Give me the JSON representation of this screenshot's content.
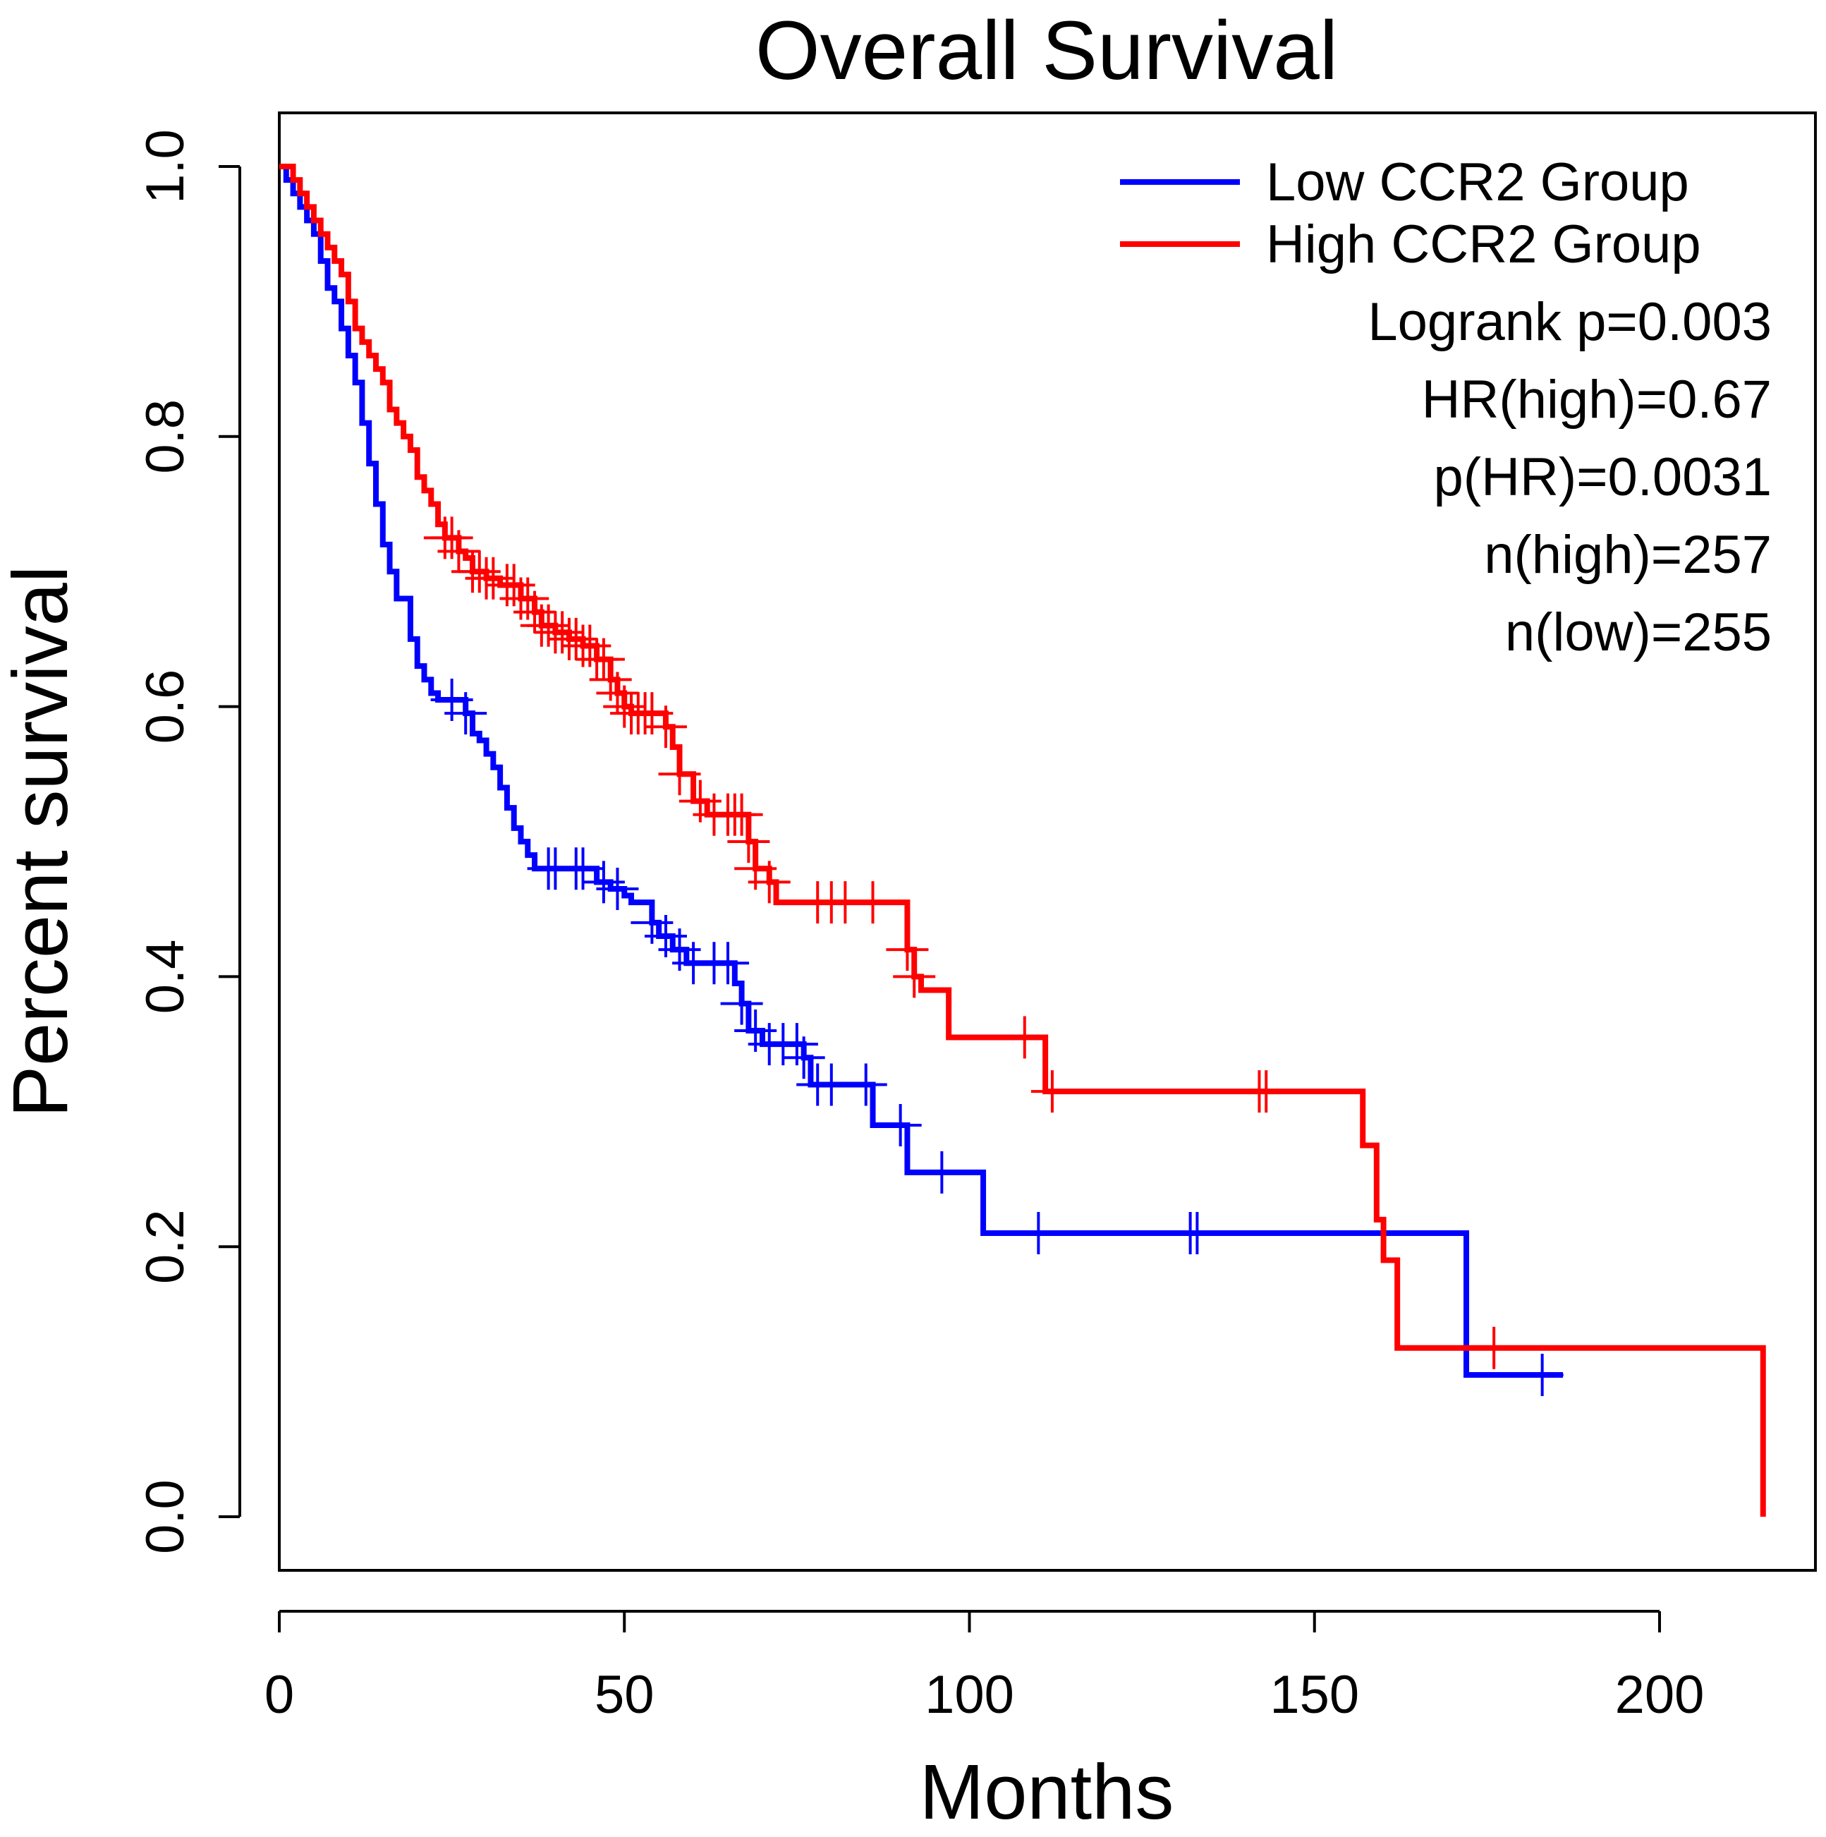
{
  "chart_data": {
    "type": "line",
    "subtype": "kaplan-meier",
    "title": "Overall Survival",
    "xlabel": "Months",
    "ylabel": "Percent survival",
    "xlim": [
      0,
      220
    ],
    "ylim": [
      0,
      1
    ],
    "xticks": [
      "0",
      "50",
      "100",
      "150",
      "200"
    ],
    "yticks": [
      "0.0",
      "0.2",
      "0.4",
      "0.6",
      "0.8",
      "1.0"
    ],
    "legend_position": "top-right",
    "grid": false,
    "series": [
      {
        "name": "Low CCR2 Group",
        "color": "#0000ff",
        "steps": [
          [
            0,
            1.0
          ],
          [
            1,
            0.99
          ],
          [
            2,
            0.98
          ],
          [
            3,
            0.97
          ],
          [
            4,
            0.96
          ],
          [
            5,
            0.95
          ],
          [
            6,
            0.93
          ],
          [
            7,
            0.91
          ],
          [
            8,
            0.9
          ],
          [
            9,
            0.88
          ],
          [
            10,
            0.86
          ],
          [
            11,
            0.84
          ],
          [
            12,
            0.81
          ],
          [
            13,
            0.78
          ],
          [
            14,
            0.75
          ],
          [
            15,
            0.72
          ],
          [
            16,
            0.7
          ],
          [
            17,
            0.68
          ],
          [
            19,
            0.65
          ],
          [
            20,
            0.63
          ],
          [
            21,
            0.62
          ],
          [
            22,
            0.61
          ],
          [
            23,
            0.605
          ],
          [
            27,
            0.595
          ],
          [
            28,
            0.58
          ],
          [
            29,
            0.575
          ],
          [
            30,
            0.565
          ],
          [
            31,
            0.555
          ],
          [
            32,
            0.54
          ],
          [
            33,
            0.525
          ],
          [
            34,
            0.51
          ],
          [
            35,
            0.5
          ],
          [
            36,
            0.49
          ],
          [
            37,
            0.48
          ],
          [
            46,
            0.47
          ],
          [
            48,
            0.465
          ],
          [
            50,
            0.46
          ],
          [
            51,
            0.455
          ],
          [
            54,
            0.44
          ],
          [
            55,
            0.43
          ],
          [
            57,
            0.42
          ],
          [
            59,
            0.41
          ],
          [
            66,
            0.395
          ],
          [
            67,
            0.38
          ],
          [
            68,
            0.36
          ],
          [
            70,
            0.35
          ],
          [
            76,
            0.34
          ],
          [
            77,
            0.32
          ],
          [
            86,
            0.29
          ],
          [
            91,
            0.255
          ],
          [
            102,
            0.21
          ],
          [
            172,
            0.105
          ],
          [
            186,
            0.105
          ]
        ],
        "censor": [
          25,
          27,
          39,
          40,
          43,
          44,
          47,
          49,
          54,
          56,
          58,
          60,
          63,
          65,
          67,
          69,
          71,
          73,
          75,
          76,
          78,
          80,
          85,
          90,
          96,
          110,
          132,
          133,
          183
        ]
      },
      {
        "name": "High CCR2 Group",
        "color": "#ff0000",
        "steps": [
          [
            0,
            1.0
          ],
          [
            2,
            0.99
          ],
          [
            3,
            0.98
          ],
          [
            4,
            0.97
          ],
          [
            5,
            0.96
          ],
          [
            6,
            0.95
          ],
          [
            7,
            0.94
          ],
          [
            8,
            0.93
          ],
          [
            9,
            0.92
          ],
          [
            10,
            0.9
          ],
          [
            11,
            0.88
          ],
          [
            12,
            0.87
          ],
          [
            13,
            0.86
          ],
          [
            14,
            0.85
          ],
          [
            15,
            0.84
          ],
          [
            16,
            0.82
          ],
          [
            17,
            0.81
          ],
          [
            18,
            0.8
          ],
          [
            19,
            0.79
          ],
          [
            20,
            0.77
          ],
          [
            21,
            0.76
          ],
          [
            22,
            0.75
          ],
          [
            23,
            0.735
          ],
          [
            24,
            0.725
          ],
          [
            26,
            0.715
          ],
          [
            27,
            0.71
          ],
          [
            28,
            0.7
          ],
          [
            30,
            0.695
          ],
          [
            32,
            0.69
          ],
          [
            35,
            0.68
          ],
          [
            37,
            0.67
          ],
          [
            38,
            0.66
          ],
          [
            40,
            0.655
          ],
          [
            42,
            0.65
          ],
          [
            44,
            0.645
          ],
          [
            46,
            0.635
          ],
          [
            48,
            0.62
          ],
          [
            49,
            0.61
          ],
          [
            50,
            0.6
          ],
          [
            51,
            0.595
          ],
          [
            56,
            0.585
          ],
          [
            57,
            0.57
          ],
          [
            58,
            0.55
          ],
          [
            60,
            0.53
          ],
          [
            62,
            0.52
          ],
          [
            68,
            0.5
          ],
          [
            69,
            0.48
          ],
          [
            71,
            0.47
          ],
          [
            72,
            0.455
          ],
          [
            91,
            0.42
          ],
          [
            92,
            0.4
          ],
          [
            93,
            0.39
          ],
          [
            97,
            0.355
          ],
          [
            111,
            0.315
          ],
          [
            157,
            0.275
          ],
          [
            159,
            0.22
          ],
          [
            160,
            0.19
          ],
          [
            162,
            0.125
          ],
          [
            215,
            0.125
          ],
          [
            215,
            0.0
          ]
        ],
        "censor": [
          24,
          25,
          26,
          28,
          29,
          30,
          31,
          33,
          34,
          35,
          36,
          37,
          38,
          39,
          40,
          41,
          42,
          43,
          44,
          45,
          46,
          47,
          48,
          49,
          50,
          51,
          52,
          53,
          54,
          56,
          58,
          61,
          63,
          65,
          66,
          67,
          68,
          69,
          71,
          78,
          80,
          82,
          86,
          91,
          92,
          108,
          112,
          142,
          143,
          176
        ]
      }
    ],
    "annotations": [
      "Logrank p=0.003",
      "HR(high)=0.67",
      "p(HR)=0.0031",
      "n(high)=257",
      "n(low)=255"
    ]
  }
}
